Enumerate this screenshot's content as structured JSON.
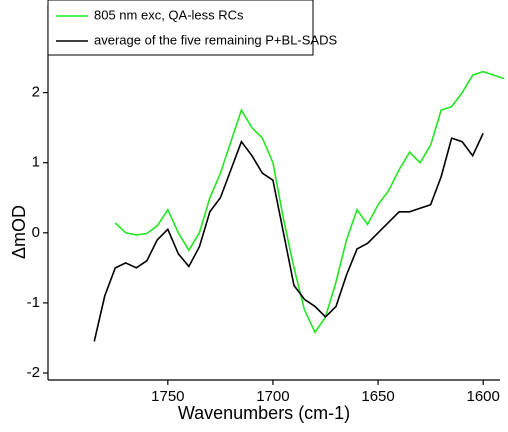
{
  "chart_data": {
    "type": "line",
    "x_label": "Wavenumbers (cm-1)",
    "y_label": "ΔmOD",
    "xlim": [
      1807,
      1592
    ],
    "xticks": [
      1750,
      1700,
      1650,
      1600
    ],
    "ylim": [
      -2.1,
      3.25
    ],
    "yticks": [
      -2,
      -1,
      0,
      1,
      2
    ],
    "legend": "top-left",
    "series": [
      {
        "name": "805 nm exc, QA-less RCs",
        "color": "#22e622",
        "x": [
          1775,
          1770,
          1765,
          1760,
          1755,
          1750,
          1745,
          1740,
          1735,
          1730,
          1725,
          1720,
          1715,
          1710,
          1705,
          1700,
          1695,
          1690,
          1685,
          1680,
          1675,
          1670,
          1665,
          1660,
          1655,
          1650,
          1645,
          1640,
          1635,
          1630,
          1625,
          1620,
          1615,
          1610,
          1605,
          1600,
          1595,
          1590
        ],
        "values": [
          0.14,
          0.0,
          -0.03,
          -0.01,
          0.1,
          0.33,
          0.0,
          -0.25,
          0.0,
          0.5,
          0.85,
          1.3,
          1.75,
          1.5,
          1.35,
          1.0,
          0.2,
          -0.5,
          -1.1,
          -1.42,
          -1.2,
          -0.7,
          -0.1,
          0.33,
          0.12,
          0.4,
          0.6,
          0.9,
          1.15,
          1.0,
          1.25,
          1.75,
          1.8,
          2.0,
          2.25,
          2.3,
          2.25,
          2.2
        ]
      },
      {
        "name": "average of the five remaining P+BL-SADS",
        "color": "#000000",
        "x": [
          1785,
          1780,
          1775,
          1770,
          1765,
          1760,
          1755,
          1750,
          1745,
          1740,
          1735,
          1730,
          1725,
          1720,
          1715,
          1710,
          1705,
          1700,
          1695,
          1690,
          1685,
          1680,
          1675,
          1670,
          1665,
          1660,
          1655,
          1650,
          1645,
          1640,
          1635,
          1630,
          1625,
          1620,
          1615,
          1610,
          1605,
          1600
        ],
        "values": [
          -1.55,
          -0.9,
          -0.5,
          -0.43,
          -0.5,
          -0.4,
          -0.1,
          0.05,
          -0.3,
          -0.48,
          -0.2,
          0.3,
          0.5,
          0.9,
          1.3,
          1.1,
          0.85,
          0.75,
          0.0,
          -0.75,
          -0.95,
          -1.05,
          -1.2,
          -1.05,
          -0.6,
          -0.23,
          -0.15,
          0.0,
          0.15,
          0.3,
          0.3,
          0.35,
          0.4,
          0.8,
          1.35,
          1.3,
          1.1,
          1.42
        ]
      }
    ]
  }
}
